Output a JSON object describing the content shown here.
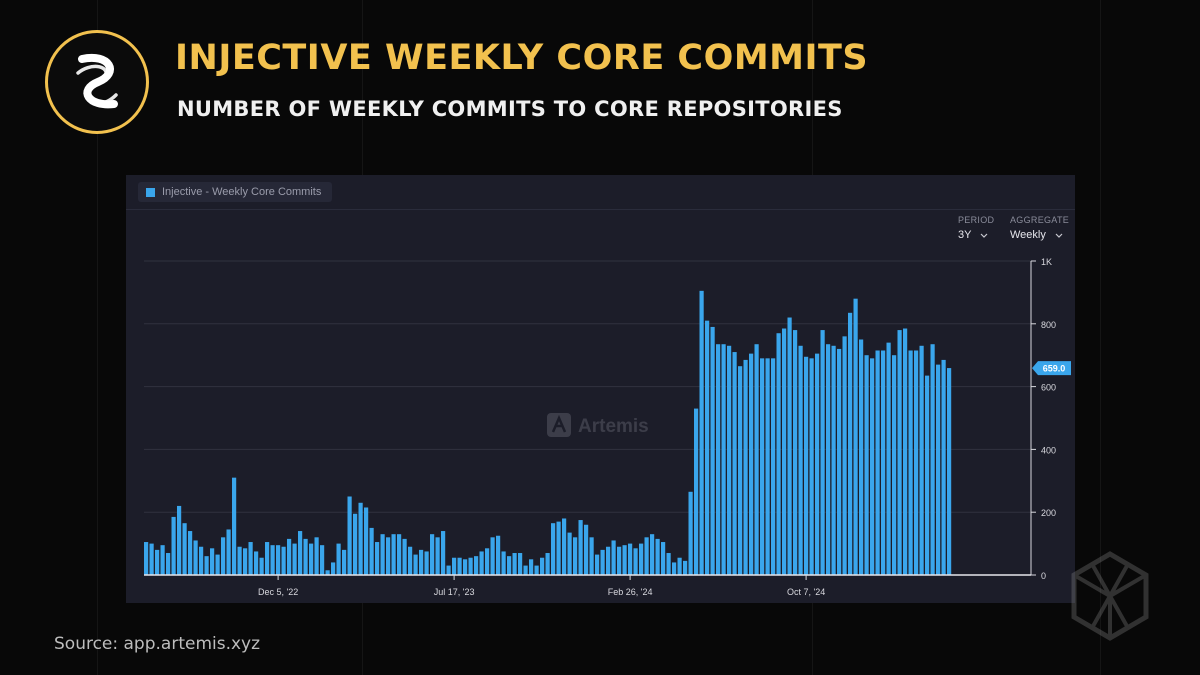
{
  "header": {
    "title": "INJECTIVE WEEKLY CORE COMMITS",
    "subtitle": "NUMBER OF WEEKLY COMMITS TO CORE REPOSITORIES"
  },
  "icons": {
    "brand_logo": "injective-logo-icon",
    "corner_logo": "hexagon-logo-icon",
    "watermark": "artemis-logo-icon"
  },
  "colors": {
    "accent": "#f2c14e",
    "bar": "#3aa6ec",
    "panel": "#1c1d29"
  },
  "chart_controls": {
    "period_label": "PERIOD",
    "period_value": "3Y",
    "aggregate_label": "AGGREGATE",
    "aggregate_value": "Weekly"
  },
  "watermark_text": "Artemis",
  "source": "Source: app.artemis.xyz",
  "chart_data": {
    "type": "bar",
    "title": "",
    "xlabel": "",
    "ylabel": "",
    "legend": [
      "Injective - Weekly Core Commits"
    ],
    "legend_position": "top-left",
    "grid": true,
    "ylim": [
      0,
      1000
    ],
    "y_axis_side": "right",
    "y_ticks": [
      {
        "value": 0,
        "label": "0"
      },
      {
        "value": 200,
        "label": "200"
      },
      {
        "value": 400,
        "label": "400"
      },
      {
        "value": 600,
        "label": "600"
      },
      {
        "value": 800,
        "label": "800"
      },
      {
        "value": 1000,
        "label": "1K"
      }
    ],
    "x_ticks": [
      {
        "index": 24,
        "label": "Dec 5, '22"
      },
      {
        "index": 56,
        "label": "Jul 17, '23"
      },
      {
        "index": 88,
        "label": "Feb 26, '24"
      },
      {
        "index": 120,
        "label": "Oct 7, '24"
      }
    ],
    "last_value_label": "659.0",
    "series": [
      {
        "name": "Injective - Weekly Core Commits",
        "color": "#3aa6ec",
        "values": [
          105,
          100,
          80,
          95,
          70,
          185,
          220,
          165,
          140,
          110,
          90,
          60,
          85,
          65,
          120,
          145,
          310,
          90,
          85,
          105,
          75,
          55,
          105,
          95,
          95,
          90,
          115,
          100,
          140,
          115,
          100,
          120,
          95,
          15,
          40,
          100,
          80,
          250,
          195,
          230,
          215,
          150,
          105,
          130,
          120,
          130,
          130,
          115,
          90,
          65,
          80,
          75,
          130,
          120,
          140,
          30,
          55,
          55,
          50,
          55,
          60,
          75,
          85,
          120,
          125,
          75,
          60,
          70,
          70,
          30,
          50,
          30,
          55,
          70,
          165,
          170,
          180,
          135,
          120,
          175,
          160,
          120,
          65,
          80,
          90,
          110,
          90,
          95,
          100,
          85,
          100,
          120,
          130,
          115,
          105,
          70,
          40,
          55,
          45,
          265,
          530,
          905,
          810,
          790,
          735,
          735,
          730,
          710,
          665,
          685,
          705,
          735,
          690,
          690,
          690,
          770,
          785,
          820,
          780,
          730,
          695,
          690,
          705,
          780,
          735,
          730,
          720,
          760,
          835,
          880,
          750,
          700,
          690,
          715,
          715,
          740,
          700,
          780,
          785,
          715,
          715,
          730,
          635,
          735,
          670,
          685,
          659
        ]
      }
    ]
  }
}
